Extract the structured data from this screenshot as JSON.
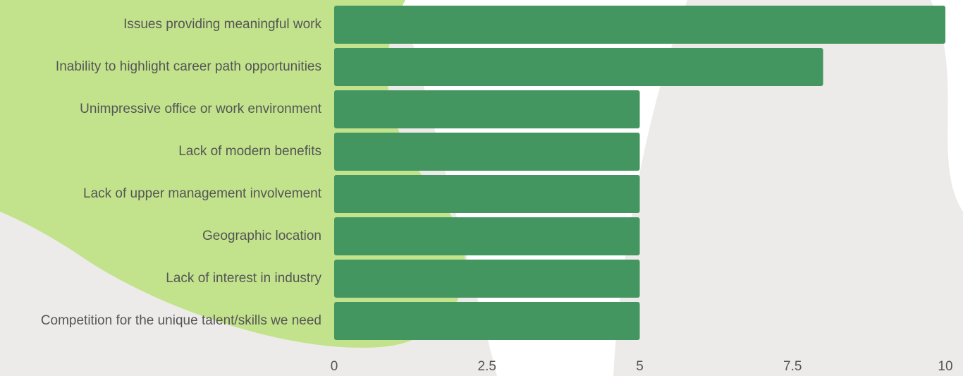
{
  "chart_data": {
    "type": "bar",
    "orientation": "horizontal",
    "categories": [
      "Issues providing meaningful work",
      "Inability to highlight career path opportunities",
      "Unimpressive office or work environment",
      "Lack of modern benefits",
      "Lack of upper management involvement",
      "Geographic location",
      "Lack of interest in industry",
      "Competition for the unique talent/skills we need"
    ],
    "values": [
      10,
      8,
      5,
      5,
      5,
      5,
      5,
      5
    ],
    "color": "#43965f",
    "xlim": [
      0,
      10
    ],
    "xticks": [
      0,
      2.5,
      5,
      7.5,
      10
    ],
    "grid": false
  }
}
